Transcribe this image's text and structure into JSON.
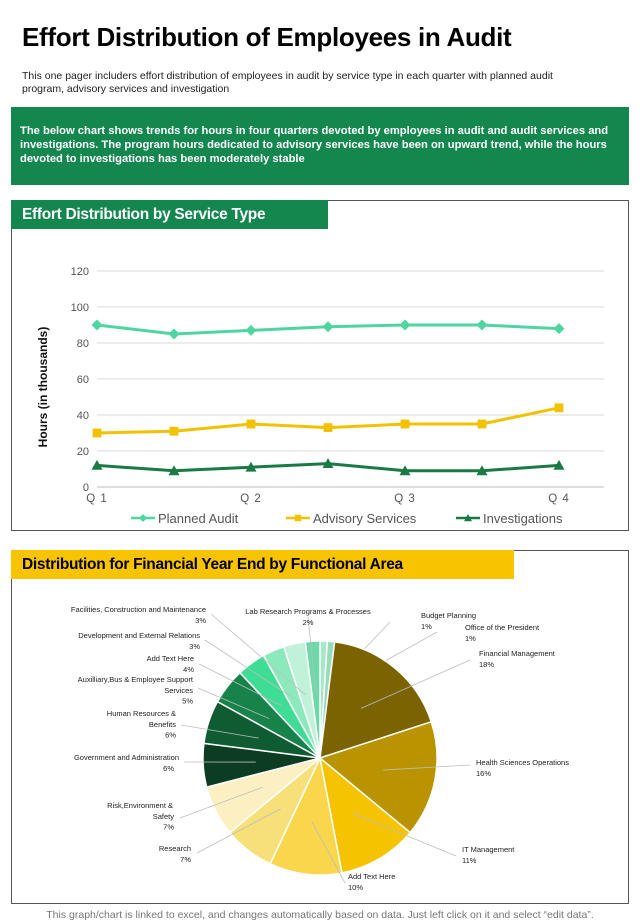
{
  "page": {
    "title": "Effort Distribution of Employees in Audit",
    "subtitle": "This one pager includers effort distribution of employees in audit by service type in each quarter with planned audit program, advisory services and investigation",
    "banner": "The below chart shows trends for hours in four quarters devoted by employees in audit and audit services and investigations. The program hours dedicated to advisory services have been on upward trend, while the hours devoted to investigations has been moderately stable",
    "line_section_title": "Effort Distribution by Service Type",
    "pie_section_title": "Distribution for Financial Year End by Functional Area",
    "footer": "This graph/chart is linked to excel,  and changes automatically based on data. Just left click on it and select “edit data”."
  },
  "chart_data": [
    {
      "type": "line",
      "title": "Effort Distribution by Service Type",
      "xlabel": "",
      "ylabel": "Hours (in thousands)",
      "ylim": [
        0,
        120
      ],
      "yticks": [
        0,
        20,
        40,
        60,
        80,
        100,
        120
      ],
      "grid": true,
      "legend": "bottom",
      "x": [
        1,
        1.5,
        2,
        2.5,
        3,
        3.5,
        4
      ],
      "xtick_labels": [
        "Q 1",
        "Q 2",
        "Q 3",
        "Q 4"
      ],
      "series": [
        {
          "name": "Planned Audit",
          "color": "#4fd6a0",
          "marker": "diamond",
          "values": [
            90,
            85,
            87,
            89,
            90,
            90,
            88
          ]
        },
        {
          "name": "Advisory Services",
          "color": "#f2c200",
          "marker": "square",
          "values": [
            30,
            31,
            35,
            33,
            35,
            35,
            44
          ]
        },
        {
          "name": "Investigations",
          "color": "#1a7a45",
          "marker": "triangle",
          "values": [
            12,
            9,
            11,
            13,
            9,
            9,
            12
          ]
        }
      ]
    },
    {
      "type": "pie",
      "title": "Distribution for Financial Year End by Functional Area",
      "slices": [
        {
          "label": "Budget Planning",
          "value": 1,
          "pct": "1%",
          "color": "#a9e7c9"
        },
        {
          "label": "Office of the President",
          "value": 1,
          "pct": "1%",
          "color": "#95dcba"
        },
        {
          "label": "Financial Management",
          "value": 18,
          "pct": "18%",
          "color": "#7a6300"
        },
        {
          "label": "Health Sciences Operations",
          "value": 16,
          "pct": "16%",
          "color": "#b99400"
        },
        {
          "label": "IT Management",
          "value": 11,
          "pct": "11%",
          "color": "#f5c300"
        },
        {
          "label": "Add Text Here",
          "value": 10,
          "pct": "10%",
          "color": "#f9d64c"
        },
        {
          "label": "Research",
          "value": 7,
          "pct": "7%",
          "color": "#f7df7a"
        },
        {
          "label": "Risk,Environment & Safety",
          "value": 7,
          "pct": "7%",
          "color": "#fcefc2"
        },
        {
          "label": "Government and Administration",
          "value": 6,
          "pct": "6%",
          "color": "#0c3d22"
        },
        {
          "label": "Human Resources & Benefits",
          "value": 6,
          "pct": "6%",
          "color": "#0f5c33"
        },
        {
          "label": "Auxilliary,Bus & Employee Support Services",
          "value": 5,
          "pct": "5%",
          "color": "#17824a"
        },
        {
          "label": "Add Text Here",
          "value": 4,
          "pct": "4%",
          "color": "#3fdc95"
        },
        {
          "label": "Development and External Relations",
          "value": 3,
          "pct": "3%",
          "color": "#8ce9bc"
        },
        {
          "label": "Facilities, Construction and Maintenance",
          "value": 3,
          "pct": "3%",
          "color": "#bff2d9"
        },
        {
          "label": "Lab Research Programs & Processes",
          "value": 2,
          "pct": "2%",
          "color": "#6bd9a8"
        }
      ]
    }
  ]
}
